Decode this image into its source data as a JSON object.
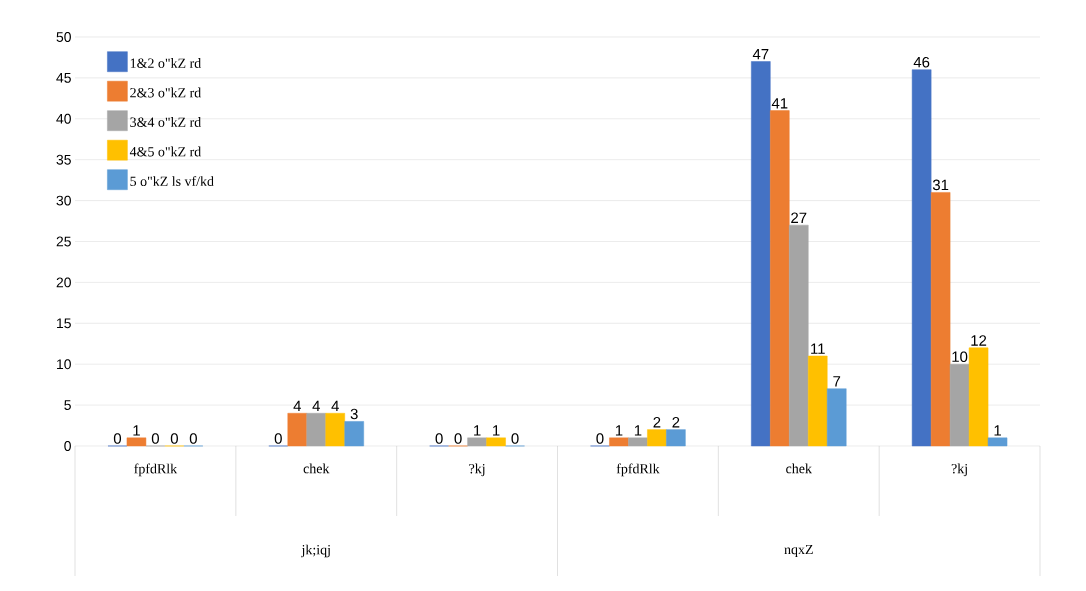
{
  "chart_data": {
    "type": "bar",
    "categories": [
      "fpfdRlk",
      "chek",
      "?kj",
      "fpfdRlk",
      "chek",
      "?kj"
    ],
    "series": [
      {
        "name": "1&2 o\"kZ rd",
        "color": "#4472c4",
        "values": [
          0,
          0,
          0,
          0,
          47,
          46
        ]
      },
      {
        "name": "2&3 o\"kZ rd",
        "color": "#ed7d31",
        "values": [
          1,
          4,
          0,
          1,
          41,
          31
        ]
      },
      {
        "name": "3&4 o\"kZ rd",
        "color": "#a5a5a5",
        "values": [
          0,
          4,
          1,
          1,
          27,
          10
        ]
      },
      {
        "name": "4&5 o\"kZ rd",
        "color": "#ffc000",
        "values": [
          0,
          4,
          1,
          2,
          11,
          12
        ]
      },
      {
        "name": "5 o\"kZ ls vf/kd",
        "color": "#5b9bd5",
        "values": [
          0,
          3,
          0,
          2,
          7,
          1
        ]
      }
    ],
    "annotations": [
      "jk;iqj",
      "nqxZ"
    ],
    "ylim": [
      0,
      50
    ],
    "yticks": [
      0,
      5,
      10,
      15,
      20,
      25,
      30,
      35,
      40,
      45,
      50
    ],
    "grid": "y",
    "legend": "top left",
    "data_labels": true
  }
}
